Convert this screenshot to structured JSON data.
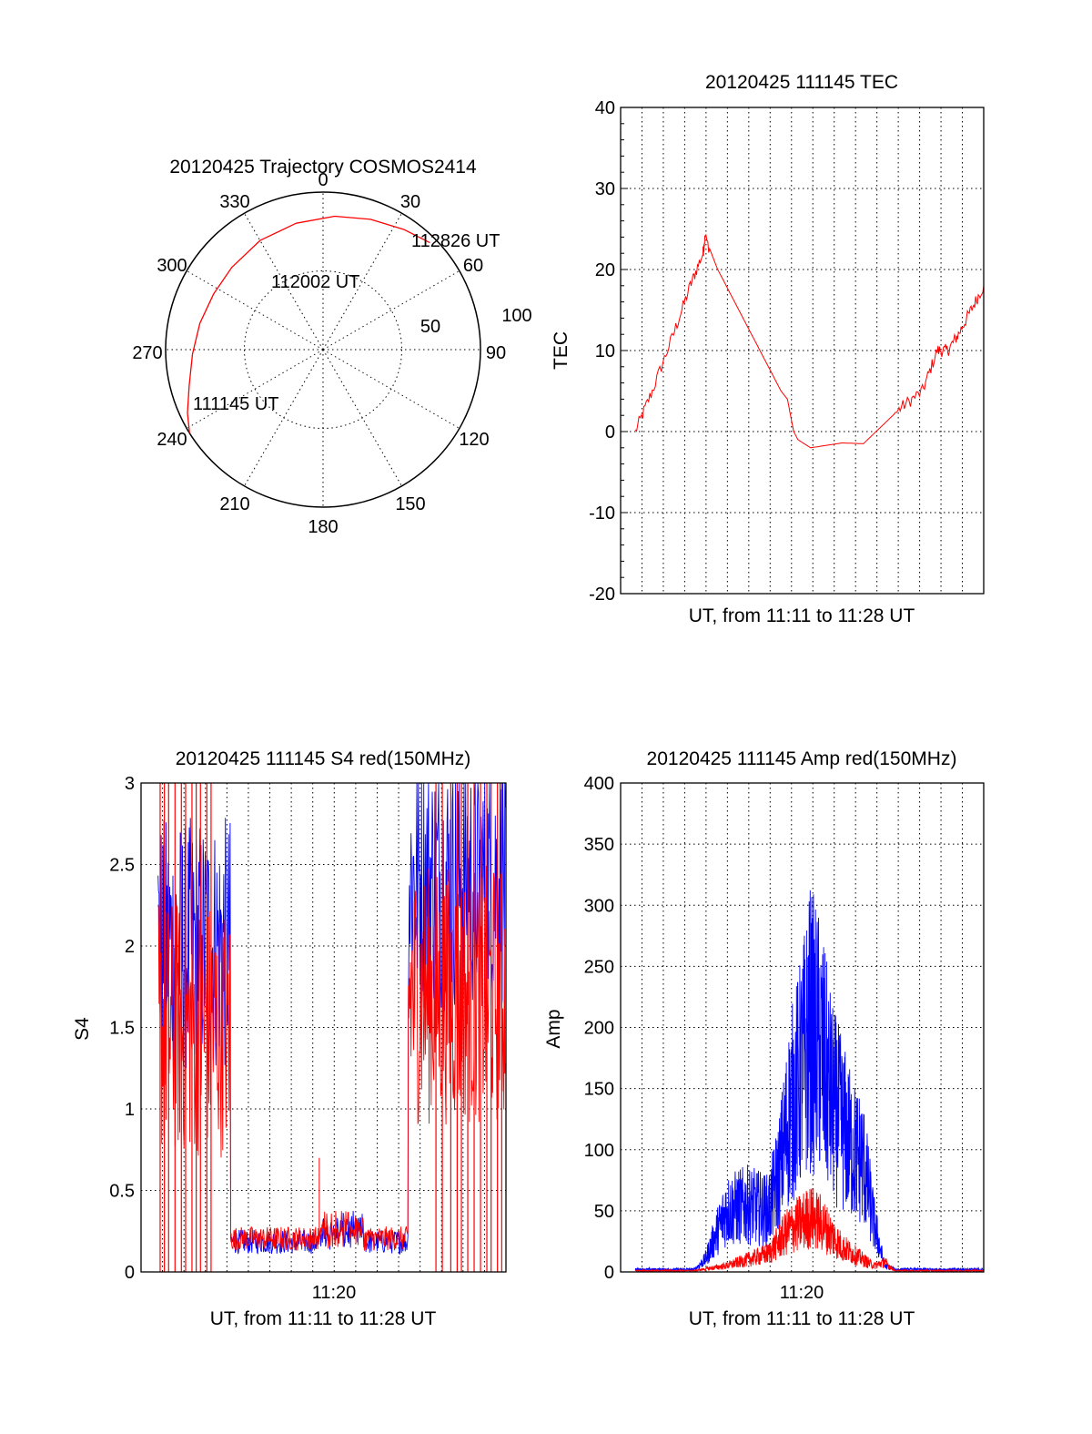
{
  "chart_data": [
    {
      "id": "trajectory",
      "type": "polar",
      "title": "20120425 Trajectory COSMOS2414",
      "angle_labels": [
        "0",
        "30",
        "60",
        "90",
        "120",
        "150",
        "180",
        "210",
        "240",
        "270",
        "300",
        "330"
      ],
      "radius_labels": [
        "50",
        "100"
      ],
      "rlim": [
        0,
        100
      ],
      "colors": {
        "track": "#ff0000"
      },
      "track": {
        "azimuth": [
          238,
          245,
          255,
          268,
          282,
          297,
          312,
          330,
          348,
          5,
          20,
          34,
          45
        ],
        "radius": [
          100,
          95,
          88,
          83,
          80,
          78,
          78,
          80,
          82,
          85,
          88,
          92,
          96
        ]
      },
      "annotations": [
        {
          "text": "112826 UT",
          "azimuth": 45,
          "radius": 100
        },
        {
          "text": "112002 UT",
          "azimuth": 315,
          "radius": 77
        },
        {
          "text": "111145 UT",
          "azimuth": 238,
          "radius": 100
        }
      ]
    },
    {
      "id": "tec",
      "type": "line",
      "title": "20120425 111145 TEC",
      "xlabel": "UT, from 11:11 to 11:28 UT",
      "ylabel": "TEC",
      "xlim_minutes_after_1111": [
        0,
        17.2
      ],
      "ylim": [
        -20,
        40
      ],
      "yticks": [
        "-20",
        "-10",
        "0",
        "10",
        "20",
        "30",
        "40"
      ],
      "grid": true,
      "colors": {
        "line": "#ff0000"
      },
      "series": [
        {
          "x_minutes_after_1111": [
            0.7,
            1.5,
            2.5,
            3.3,
            3.9,
            4.0,
            4.6,
            5.8,
            7.0,
            7.6,
            7.9,
            8.2,
            8.4,
            9.0,
            10.5,
            11.5,
            12.5,
            13.3,
            14.3,
            15.0,
            15.5,
            16.0,
            16.6,
            17.2
          ],
          "y": [
            0,
            5,
            12,
            18,
            22,
            24,
            20,
            14,
            8,
            5,
            4,
            0,
            -1,
            -2,
            -1.4,
            -1.5,
            1,
            3,
            5,
            10,
            10,
            12,
            15,
            18
          ]
        }
      ]
    },
    {
      "id": "s4",
      "type": "line",
      "title": "20120425 111145 S4 red(150MHz)",
      "xlabel": "UT, from 11:11 to 11:28 UT",
      "ylabel": "S4",
      "xtick_labels": [
        "11:20"
      ],
      "ylim": [
        0,
        3
      ],
      "yticks": [
        "0",
        "0.5",
        "1",
        "1.5",
        "2",
        "2.5",
        "3"
      ],
      "grid": true,
      "colors": {
        "red": "#ff0000",
        "blue": "#0000ff"
      },
      "series_approx": [
        {
          "color": "red",
          "segments_minutes_after_1111": [
            [
              0,
              3.4
            ],
            [
              3.4,
              12.5
            ],
            [
              12.5,
              17.2
            ]
          ],
          "levels": [
            1.4,
            0.22,
            1.5
          ]
        },
        {
          "color": "blue",
          "segments_minutes_after_1111": [
            [
              0,
              3.4
            ],
            [
              3.4,
              12.5
            ],
            [
              12.5,
              17.2
            ]
          ],
          "levels": [
            2.0,
            0.2,
            2.5
          ]
        }
      ]
    },
    {
      "id": "amp",
      "type": "line",
      "title": "20120425 111145 Amp red(150MHz)",
      "xlabel": "UT, from 11:11 to 11:28 UT",
      "ylabel": "Amp",
      "xtick_labels": [
        "11:20"
      ],
      "ylim": [
        0,
        400
      ],
      "yticks": [
        "0",
        "50",
        "100",
        "150",
        "200",
        "250",
        "300",
        "350",
        "400"
      ],
      "grid": true,
      "colors": {
        "red": "#ff0000",
        "blue": "#0000ff"
      },
      "series_approx": [
        {
          "color": "blue",
          "x_minutes_after_1111": [
            0,
            3.5,
            4,
            5,
            6,
            7,
            7.5,
            8,
            8.5,
            9,
            9.5,
            10,
            10.5,
            11,
            11.5,
            12,
            12.5,
            13,
            17.2
          ],
          "y": [
            2,
            2,
            10,
            50,
            55,
            50,
            80,
            130,
            160,
            200,
            180,
            140,
            120,
            100,
            90,
            40,
            5,
            2,
            2
          ],
          "max": 300
        },
        {
          "color": "red",
          "x_minutes_after_1111": [
            0,
            3.5,
            5,
            6,
            7,
            7.5,
            8,
            8.5,
            9,
            9.5,
            10,
            10.5,
            11,
            11.5,
            12,
            12.5,
            13,
            17.2
          ],
          "y": [
            1,
            1,
            5,
            10,
            15,
            25,
            35,
            40,
            45,
            40,
            30,
            20,
            15,
            10,
            5,
            8,
            1,
            1
          ],
          "max": 70
        }
      ]
    }
  ]
}
